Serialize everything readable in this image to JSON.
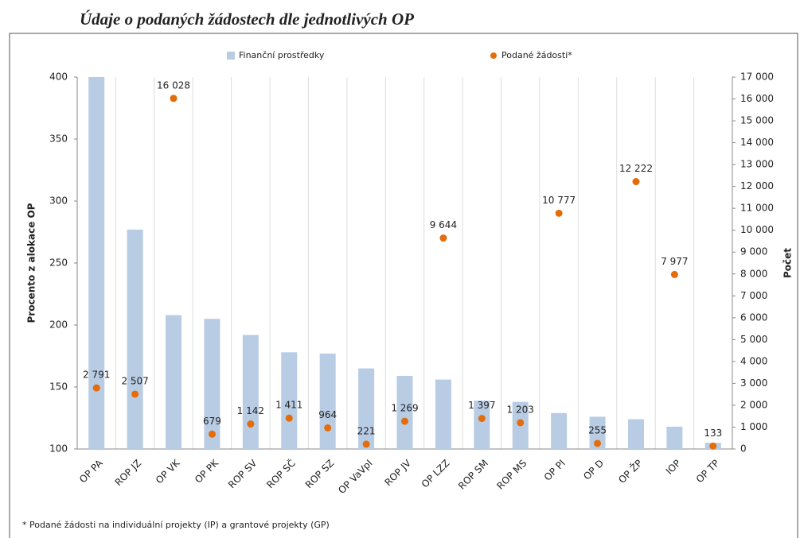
{
  "chart_data": {
    "type": "bar_scatter",
    "title": "Údaje o podaných žádostech dle jednotlivých OP",
    "ylabel": "Procento z alokace OP",
    "y2label": "Počet",
    "footnote": "* Podané žádosti na individuální projekty (IP) a grantové projekty (GP)",
    "categories": [
      "OP PA",
      "ROP JZ",
      "OP VK",
      "OP PK",
      "ROP SV",
      "ROP SČ",
      "ROP SZ",
      "OP VaVpI",
      "ROP JV",
      "OP LZZ",
      "ROP SM",
      "ROP MS",
      "OP PI",
      "OP D",
      "OP ŽP",
      "IOP",
      "OP TP"
    ],
    "series": [
      {
        "name": "Finanční prostředky",
        "color": "#b8cce4",
        "values": [
          400,
          277,
          208,
          205,
          192,
          178,
          177,
          165,
          159,
          156,
          139,
          138,
          129,
          126,
          124,
          118,
          105
        ]
      },
      {
        "name": "Podané žádosti*",
        "color": "#e46c0a",
        "axis": "y2",
        "values": [
          2791,
          2507,
          16028,
          679,
          1142,
          1411,
          964,
          221,
          1269,
          9644,
          1397,
          1203,
          10777,
          255,
          12222,
          7977,
          133
        ],
        "value_labels": [
          "2 791",
          "2 507",
          "16 028",
          "679",
          "1 142",
          "1 411",
          "964",
          "221",
          "1 269",
          "9 644",
          "1 397",
          "1 203",
          "10 777",
          "255",
          "12 222",
          "7 977",
          "133"
        ]
      }
    ],
    "ylim": [
      100,
      400
    ],
    "yticks": [
      100,
      150,
      200,
      250,
      300,
      350,
      400
    ],
    "y2lim": [
      0,
      17000
    ],
    "y2ticks": [
      0,
      {
        "value": 1000,
        "label": "1 000"
      },
      {
        "value": 2000,
        "label": "2 000"
      },
      {
        "value": 3000,
        "label": "3 000"
      },
      {
        "value": 4000,
        "label": "4 000"
      },
      {
        "value": 5000,
        "label": "5 000"
      },
      {
        "value": 6000,
        "label": "6 000"
      },
      {
        "value": 7000,
        "label": "7 000"
      },
      {
        "value": 8000,
        "label": "8 000"
      },
      {
        "value": 9000,
        "label": "9 000"
      },
      {
        "value": 10000,
        "label": "10 000"
      },
      {
        "value": 11000,
        "label": "11 000"
      },
      {
        "value": 12000,
        "label": "12 000"
      },
      {
        "value": 13000,
        "label": "13 000"
      },
      {
        "value": 14000,
        "label": "14 000"
      },
      {
        "value": 15000,
        "label": "15 000"
      },
      {
        "value": 16000,
        "label": "16 000"
      },
      {
        "value": 17000,
        "label": "17 000"
      }
    ],
    "grid": true
  }
}
